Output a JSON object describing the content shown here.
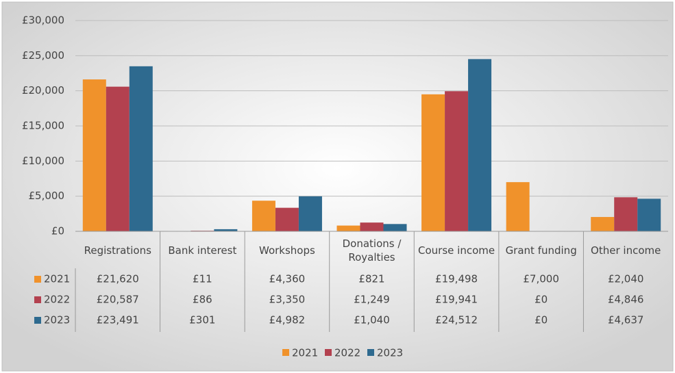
{
  "chart_data": {
    "type": "bar",
    "categories": [
      "Registrations",
      "Bank interest",
      "Workshops",
      "Donations / Royalties",
      "Course income",
      "Grant funding",
      "Other income"
    ],
    "series": [
      {
        "name": "2021",
        "color": "#f0922b",
        "values": [
          21620,
          11,
          4360,
          821,
          19498,
          7000,
          2040
        ],
        "value_labels": [
          "£21,620",
          "£11",
          "£4,360",
          "£821",
          "£19,498",
          "£7,000",
          "£2,040"
        ]
      },
      {
        "name": "2022",
        "color": "#b3414f",
        "values": [
          20587,
          86,
          3350,
          1249,
          19941,
          0,
          4846
        ],
        "value_labels": [
          "£20,587",
          "£86",
          "£3,350",
          "£1,249",
          "£19,941",
          "£0",
          "£4,846"
        ]
      },
      {
        "name": "2023",
        "color": "#2e6a8f",
        "values": [
          23491,
          301,
          4982,
          1040,
          24512,
          0,
          4637
        ],
        "value_labels": [
          "£23,491",
          "£301",
          "£4,982",
          "£1,040",
          "£24,512",
          "£0",
          "£4,637"
        ]
      }
    ],
    "ylim": [
      0,
      30000
    ],
    "yticks": [
      {
        "value": 0,
        "label": "£0"
      },
      {
        "value": 5000,
        "label": "£5,000"
      },
      {
        "value": 10000,
        "label": "£10,000"
      },
      {
        "value": 15000,
        "label": "£15,000"
      },
      {
        "value": 20000,
        "label": "£20,000"
      },
      {
        "value": 25000,
        "label": "£25,000"
      },
      {
        "value": 30000,
        "label": "£30,000"
      }
    ],
    "grid": true,
    "legend": "bottom"
  }
}
